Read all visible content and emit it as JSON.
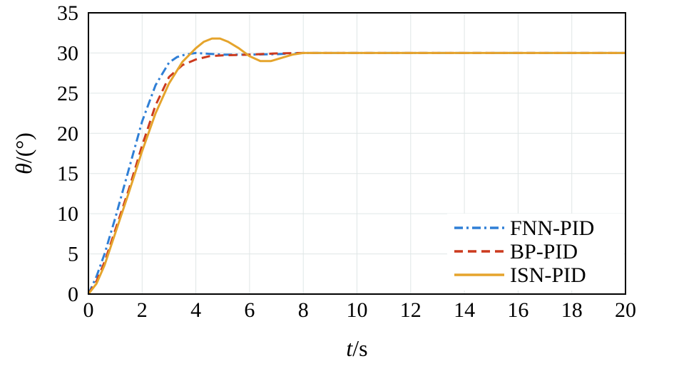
{
  "chart_data": {
    "type": "line",
    "title": "",
    "xlabel_italic": "t",
    "xlabel_unit": "/s",
    "ylabel_italic": "θ",
    "ylabel_unit": "/(°)",
    "xlim": [
      0,
      20
    ],
    "ylim": [
      0,
      35
    ],
    "xticks": [
      0,
      2,
      4,
      6,
      8,
      10,
      12,
      14,
      16,
      18,
      20
    ],
    "yticks": [
      0,
      5,
      10,
      15,
      20,
      25,
      30,
      35
    ],
    "grid": true,
    "legend_position": "bottom-right",
    "series": [
      {
        "name": "FNN-PID",
        "color": "#2f7fd6",
        "dash": "dash-dot",
        "x": [
          0,
          0.3,
          0.6,
          1.0,
          1.5,
          2.0,
          2.5,
          3.0,
          3.3,
          3.6,
          4.0,
          4.5,
          5.0,
          6.0,
          7.0,
          8.0,
          9.0,
          20
        ],
        "y": [
          0,
          2.2,
          5.0,
          9.5,
          15.5,
          21.5,
          26.0,
          28.8,
          29.5,
          29.8,
          30.0,
          29.9,
          29.8,
          29.8,
          29.85,
          30.0,
          30.0,
          30.0
        ]
      },
      {
        "name": "BP-PID",
        "color": "#cc3a1e",
        "dash": "dash",
        "x": [
          0,
          0.3,
          0.6,
          1.0,
          1.5,
          2.0,
          2.5,
          3.0,
          3.5,
          4.0,
          4.5,
          5.0,
          6.0,
          7.0,
          8.0,
          9.0,
          20
        ],
        "y": [
          0,
          1.6,
          4.0,
          8.0,
          13.0,
          18.5,
          23.5,
          27.0,
          28.5,
          29.2,
          29.6,
          29.7,
          29.8,
          29.95,
          30.0,
          30.0,
          30.0
        ]
      },
      {
        "name": "ISN-PID",
        "color": "#e5a42c",
        "dash": "solid",
        "x": [
          0,
          0.3,
          0.6,
          1.0,
          1.5,
          2.0,
          2.5,
          3.0,
          3.5,
          4.0,
          4.3,
          4.6,
          4.9,
          5.2,
          5.6,
          6.0,
          6.4,
          6.8,
          7.2,
          7.6,
          8.0,
          9.0,
          10.0,
          20
        ],
        "y": [
          0,
          1.3,
          3.6,
          7.6,
          12.6,
          17.8,
          22.5,
          26.2,
          28.9,
          30.6,
          31.4,
          31.8,
          31.8,
          31.4,
          30.6,
          29.6,
          29.0,
          29.0,
          29.4,
          29.8,
          30.0,
          30.0,
          30.0,
          30.0
        ]
      }
    ]
  }
}
